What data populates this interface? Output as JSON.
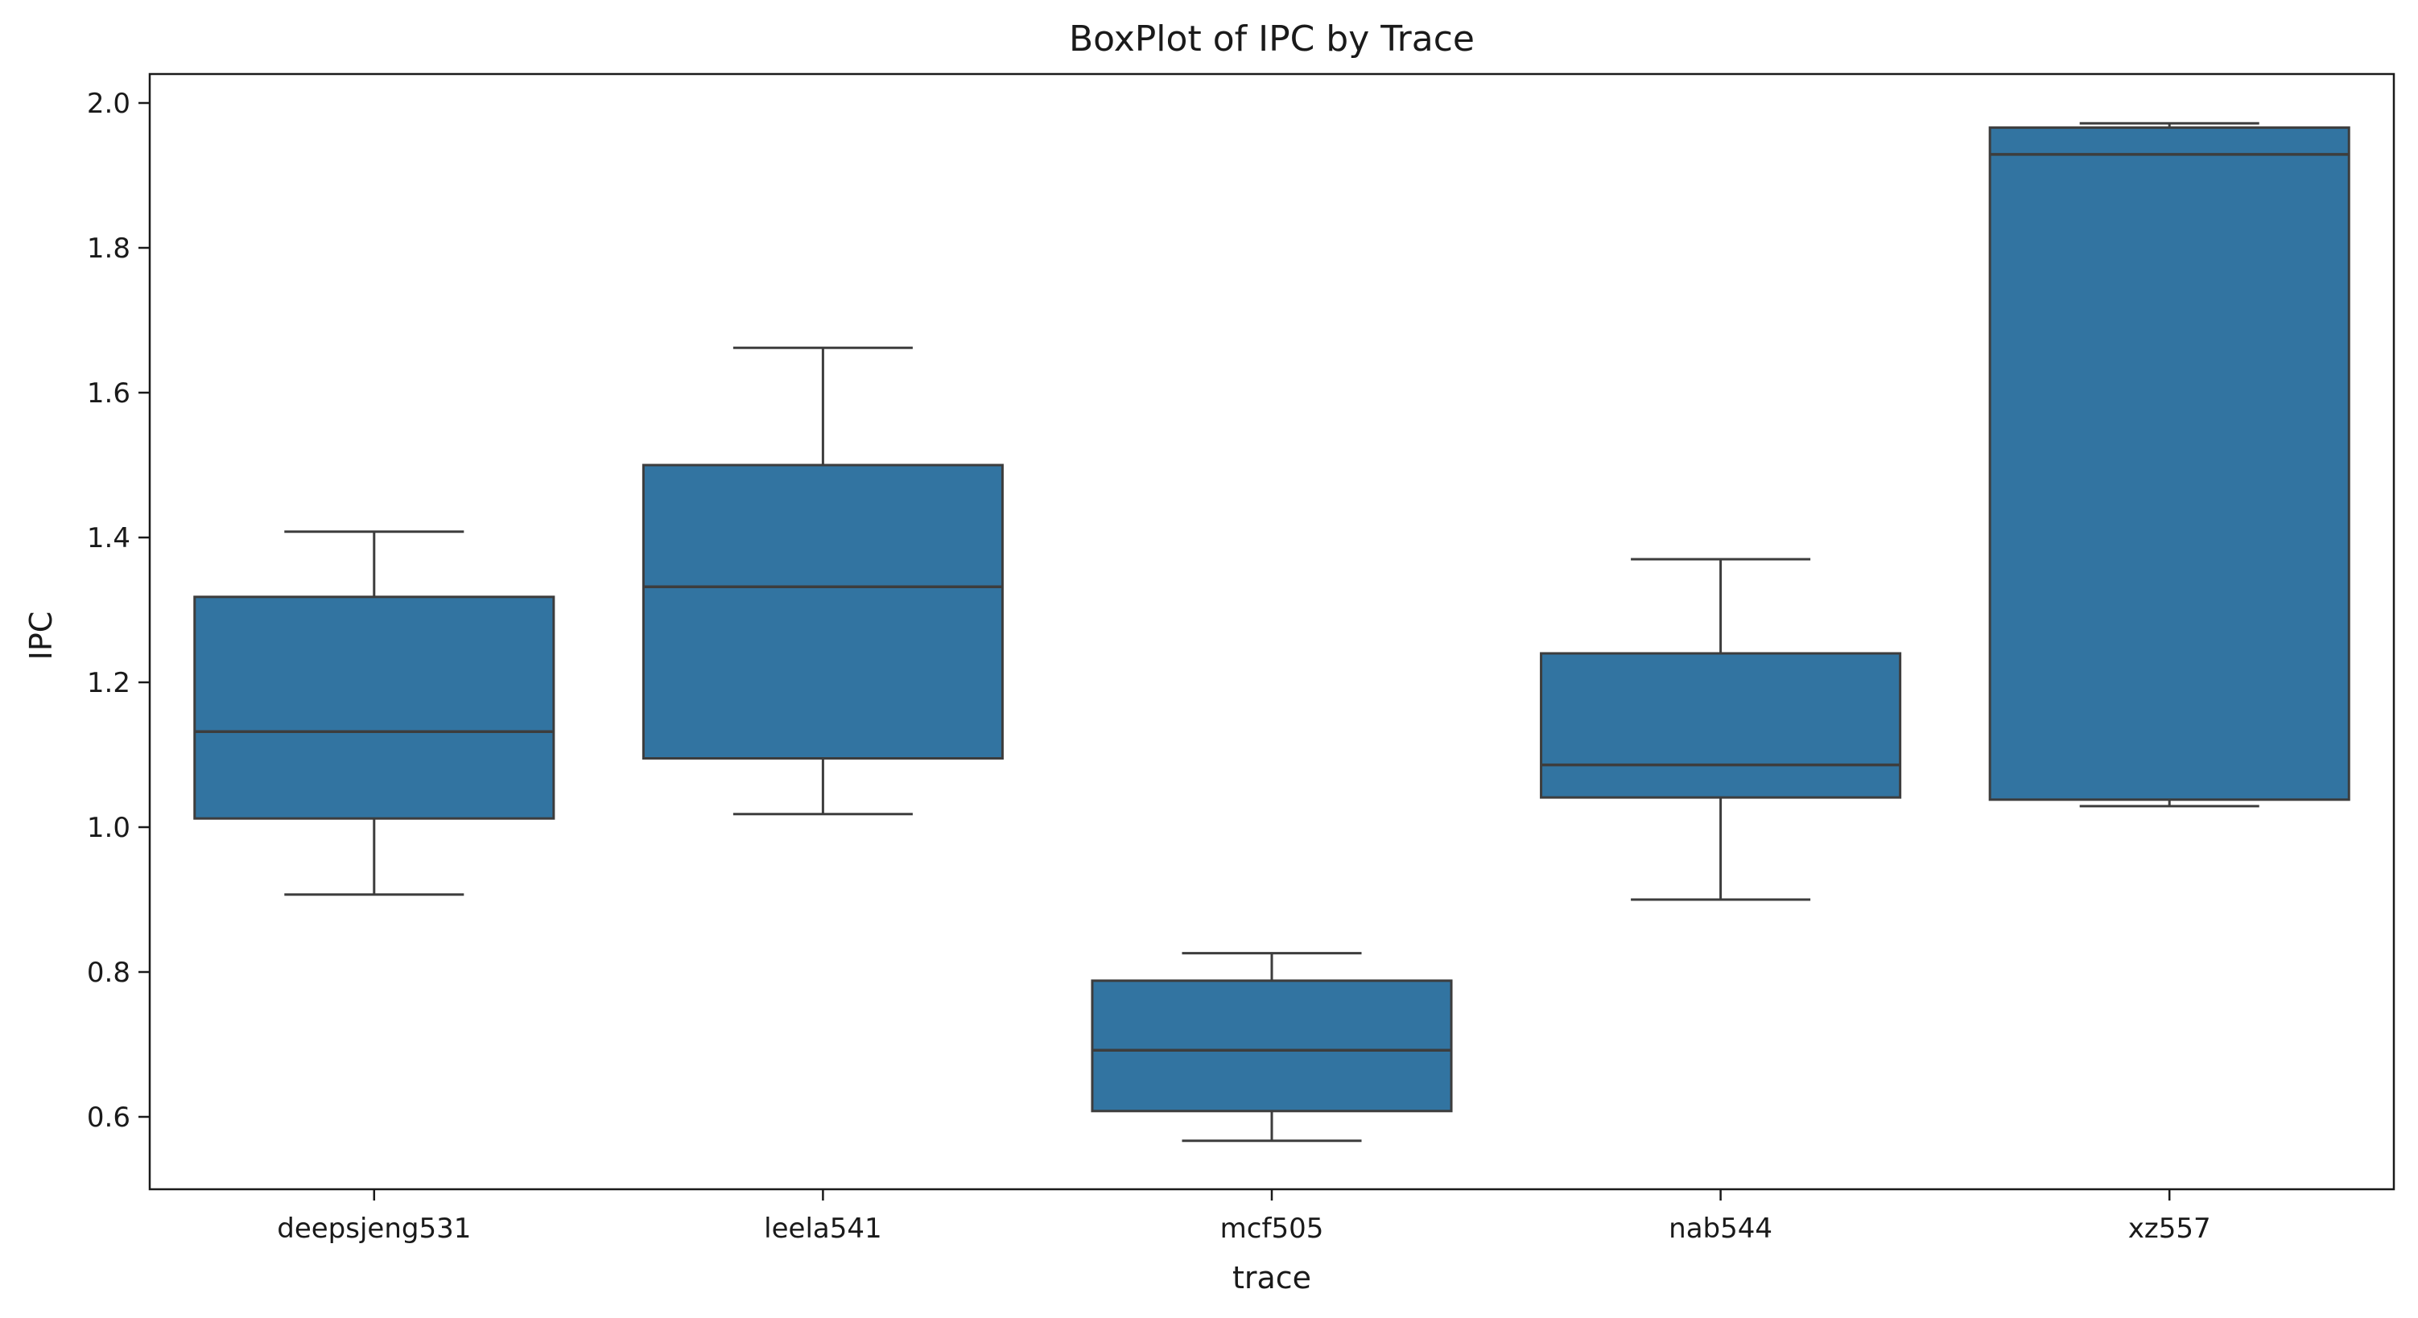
{
  "chart_data": {
    "type": "box",
    "title": "BoxPlot of IPC by Trace",
    "xlabel": "trace",
    "ylabel": "IPC",
    "ylim": [
      0.5,
      2.04
    ],
    "yticks": [
      0.6,
      0.8,
      1.0,
      1.2,
      1.4,
      1.6,
      1.8,
      2.0
    ],
    "ytick_labels": [
      "0.6",
      "0.8",
      "1.0",
      "1.2",
      "1.4",
      "1.6",
      "1.8",
      "2.0"
    ],
    "categories": [
      "deepsjeng531",
      "leela541",
      "mcf505",
      "nab544",
      "xz557"
    ],
    "boxes": [
      {
        "category": "deepsjeng531",
        "min": 0.907,
        "q1": 1.012,
        "median": 1.132,
        "q3": 1.318,
        "max": 1.408
      },
      {
        "category": "leela541",
        "min": 1.018,
        "q1": 1.095,
        "median": 1.332,
        "q3": 1.5,
        "max": 1.662
      },
      {
        "category": "mcf505",
        "min": 0.567,
        "q1": 0.608,
        "median": 0.692,
        "q3": 0.788,
        "max": 0.826
      },
      {
        "category": "nab544",
        "min": 0.9,
        "q1": 1.041,
        "median": 1.086,
        "q3": 1.24,
        "max": 1.37
      },
      {
        "category": "xz557",
        "min": 1.029,
        "q1": 1.038,
        "median": 1.929,
        "q3": 1.966,
        "max": 1.972
      }
    ],
    "box_color": "#3274a1",
    "line_color": "#3d3d3d",
    "grid": false
  }
}
